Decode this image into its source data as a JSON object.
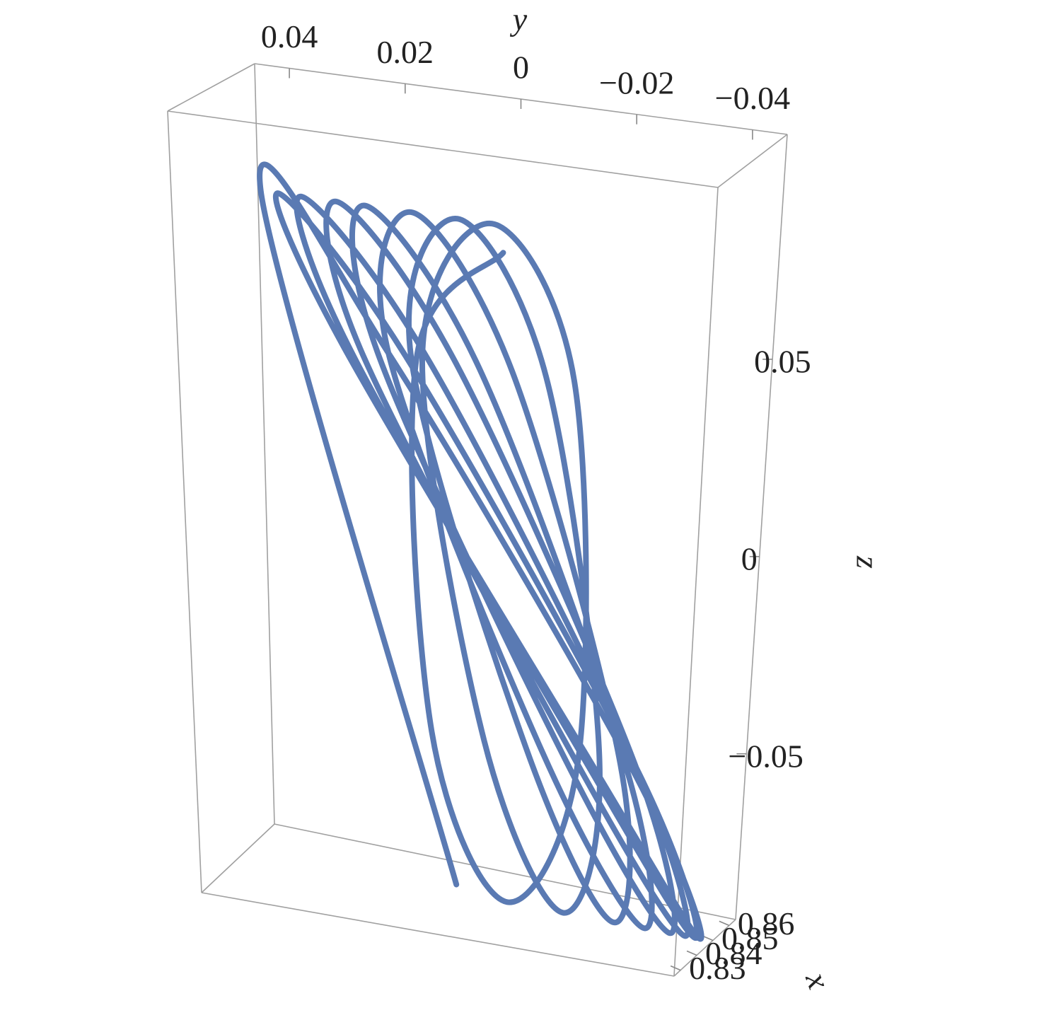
{
  "chart_data": {
    "type": "line3d",
    "xlabel": "x",
    "ylabel": "y",
    "zlabel": "z",
    "xlim": [
      0.826,
      0.864
    ],
    "ylim": [
      0.046,
      -0.046
    ],
    "zlim": [
      -0.092,
      0.107
    ],
    "xticks": [
      0.83,
      0.84,
      0.85,
      0.86
    ],
    "yticks": [
      0.04,
      0.02,
      0,
      {
        "value": -0.02,
        "label": "−0.02"
      },
      {
        "value": -0.04,
        "label": "−0.04"
      }
    ],
    "zticks": [
      0.05,
      0,
      {
        "value": -0.05,
        "label": "−0.05"
      }
    ],
    "series": [
      {
        "color": "#5a7ab3",
        "y": [
          0.003,
          0.038,
          0.016,
          -0.03,
          -0.045,
          -0.022,
          0.024,
          0.035,
          0.013,
          -0.031,
          -0.044,
          -0.021,
          0.023,
          0.031,
          0.009,
          -0.031,
          -0.042,
          -0.019,
          0.021,
          0.025,
          0.004,
          -0.031,
          -0.039,
          -0.017,
          0.018,
          0.02,
          0.0,
          -0.029,
          -0.034,
          -0.013,
          0.016,
          0.012,
          -0.006,
          -0.028,
          -0.028,
          -0.01,
          0.012,
          0.004,
          -0.012,
          -0.024,
          -0.018,
          -0.002,
          0.01,
          -0.002,
          -0.017,
          -0.02,
          -0.007,
          0.008,
          0.011,
          -0.004
        ],
        "z": [
          -0.088,
          0.082,
          0.045,
          -0.05,
          -0.09,
          -0.05,
          0.045,
          0.082,
          0.045,
          -0.05,
          -0.09,
          -0.05,
          0.045,
          0.082,
          0.045,
          -0.05,
          -0.09,
          -0.05,
          0.045,
          0.082,
          0.045,
          -0.05,
          -0.09,
          -0.05,
          0.045,
          0.082,
          0.045,
          -0.05,
          -0.09,
          -0.05,
          0.045,
          0.082,
          0.045,
          -0.05,
          -0.09,
          -0.05,
          0.045,
          0.082,
          0.045,
          -0.05,
          -0.09,
          -0.05,
          0.045,
          0.082,
          0.045,
          -0.05,
          -0.09,
          -0.05,
          0.045,
          0.075
        ],
        "x": [
          0.845,
          0.845,
          0.845,
          0.845,
          0.845,
          0.845,
          0.845,
          0.845,
          0.845,
          0.845,
          0.845,
          0.845,
          0.845,
          0.845,
          0.845,
          0.845,
          0.845,
          0.845,
          0.845,
          0.845,
          0.845,
          0.845,
          0.845,
          0.845,
          0.845,
          0.845,
          0.845,
          0.845,
          0.845,
          0.845,
          0.845,
          0.845,
          0.845,
          0.845,
          0.845,
          0.845,
          0.845,
          0.845,
          0.845,
          0.845,
          0.845,
          0.845,
          0.845,
          0.845,
          0.845,
          0.845,
          0.845,
          0.845,
          0.845,
          0.845
        ]
      }
    ]
  }
}
